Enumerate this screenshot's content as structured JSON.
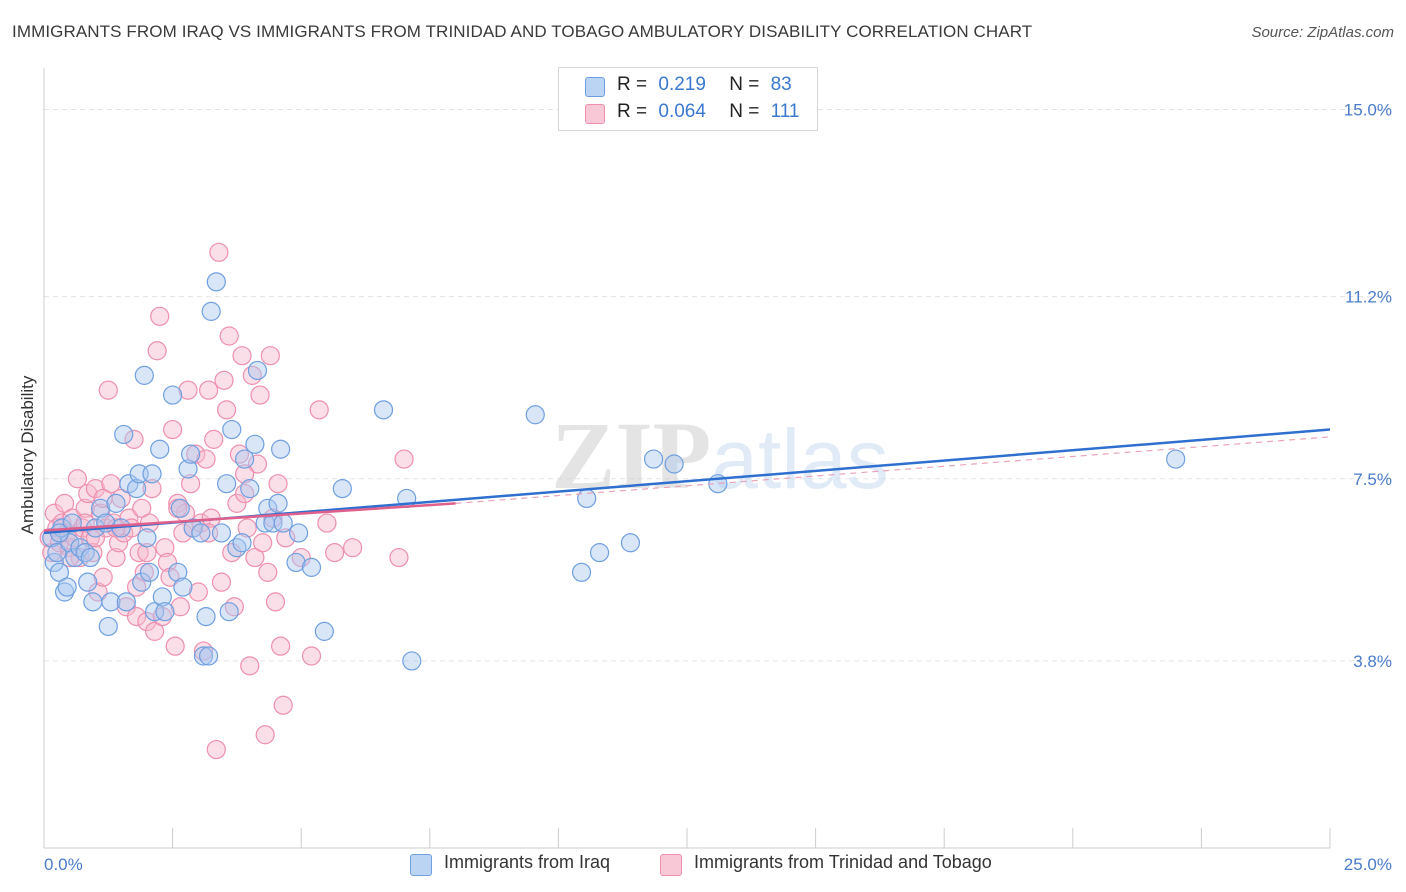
{
  "header": {
    "title": "IMMIGRANTS FROM IRAQ VS IMMIGRANTS FROM TRINIDAD AND TOBAGO AMBULATORY DISABILITY CORRELATION CHART",
    "source": "Source: ZipAtlas.com"
  },
  "legend": {
    "iraq": {
      "r_label": "R =",
      "r_value": "0.219",
      "n_label": "N =",
      "n_value": "83"
    },
    "trinidad": {
      "r_label": "R =",
      "r_value": "0.064",
      "n_label": "N =",
      "n_value": "111"
    }
  },
  "colors": {
    "iraq_fill": "#a9c8f0",
    "iraq_stroke": "#6f9fe0",
    "iraq_line": "#2f6fcf",
    "trinidad_fill": "#f7b8cb",
    "trinidad_stroke": "#ee8fae",
    "trinidad_line": "#e0608c",
    "grid": "#e3e3e3",
    "tick_label": "#4a7cc9"
  },
  "chart_data": {
    "type": "scatter",
    "title": "IMMIGRANTS FROM IRAQ VS IMMIGRANTS FROM TRINIDAD AND TOBAGO AMBULATORY DISABILITY CORRELATION CHART",
    "ylabel": "Ambulatory Disability",
    "xlabel": "",
    "xlim": [
      0,
      25
    ],
    "ylim": [
      0,
      15.6
    ],
    "x_tick_labels": [
      "0.0%",
      "25.0%"
    ],
    "y_ticks": [
      3.8,
      7.5,
      11.2,
      15.0
    ],
    "y_tick_labels": [
      "3.8%",
      "7.5%",
      "11.2%",
      "15.0%"
    ],
    "grid": true,
    "legend_placement": "top-center",
    "watermark": "ZIPatlas",
    "series": [
      {
        "name": "Immigrants from Iraq",
        "trend": {
          "x": [
            0,
            25
          ],
          "y": [
            6.4,
            8.5
          ]
        },
        "points": [
          [
            0.15,
            6.3
          ],
          [
            0.2,
            5.8
          ],
          [
            0.25,
            6.0
          ],
          [
            0.3,
            5.6
          ],
          [
            0.35,
            6.5
          ],
          [
            0.4,
            5.2
          ],
          [
            0.45,
            5.3
          ],
          [
            0.5,
            6.2
          ],
          [
            0.55,
            6.6
          ],
          [
            0.6,
            5.9
          ],
          [
            0.7,
            6.1
          ],
          [
            0.8,
            6.0
          ],
          [
            0.85,
            5.4
          ],
          [
            0.9,
            5.9
          ],
          [
            0.95,
            5.0
          ],
          [
            1.0,
            6.5
          ],
          [
            1.1,
            6.9
          ],
          [
            1.2,
            6.6
          ],
          [
            1.25,
            4.5
          ],
          [
            1.3,
            5.0
          ],
          [
            1.4,
            7.0
          ],
          [
            1.5,
            6.5
          ],
          [
            1.55,
            8.4
          ],
          [
            1.6,
            5.0
          ],
          [
            1.65,
            7.4
          ],
          [
            1.8,
            7.3
          ],
          [
            1.85,
            7.6
          ],
          [
            1.9,
            5.4
          ],
          [
            1.95,
            9.6
          ],
          [
            2.0,
            6.3
          ],
          [
            2.05,
            5.6
          ],
          [
            2.1,
            7.6
          ],
          [
            2.15,
            4.8
          ],
          [
            2.25,
            8.1
          ],
          [
            2.3,
            5.1
          ],
          [
            2.35,
            4.8
          ],
          [
            2.5,
            9.2
          ],
          [
            2.6,
            5.6
          ],
          [
            2.65,
            6.9
          ],
          [
            2.7,
            5.3
          ],
          [
            2.8,
            7.7
          ],
          [
            2.85,
            8.0
          ],
          [
            2.9,
            6.5
          ],
          [
            3.05,
            6.4
          ],
          [
            3.1,
            3.9
          ],
          [
            3.15,
            4.7
          ],
          [
            3.2,
            3.9
          ],
          [
            3.25,
            10.9
          ],
          [
            3.35,
            11.5
          ],
          [
            3.45,
            6.4
          ],
          [
            3.55,
            7.4
          ],
          [
            3.6,
            4.8
          ],
          [
            3.65,
            8.5
          ],
          [
            3.75,
            6.1
          ],
          [
            3.85,
            6.2
          ],
          [
            3.9,
            7.9
          ],
          [
            4.0,
            7.3
          ],
          [
            4.1,
            8.2
          ],
          [
            4.15,
            9.7
          ],
          [
            4.3,
            6.6
          ],
          [
            4.35,
            6.9
          ],
          [
            4.45,
            6.6
          ],
          [
            4.55,
            7.0
          ],
          [
            4.6,
            8.1
          ],
          [
            4.65,
            6.6
          ],
          [
            4.9,
            5.8
          ],
          [
            4.95,
            6.4
          ],
          [
            5.2,
            5.7
          ],
          [
            5.45,
            4.4
          ],
          [
            5.8,
            7.3
          ],
          [
            6.6,
            8.9
          ],
          [
            7.05,
            7.1
          ],
          [
            7.15,
            3.8
          ],
          [
            9.55,
            8.8
          ],
          [
            10.45,
            5.6
          ],
          [
            10.55,
            7.1
          ],
          [
            10.8,
            6.0
          ],
          [
            11.4,
            6.2
          ],
          [
            11.85,
            7.9
          ],
          [
            12.25,
            7.8
          ],
          [
            13.1,
            7.4
          ],
          [
            22.0,
            7.9
          ],
          [
            0.3,
            6.4
          ]
        ]
      },
      {
        "name": "Immigrants from Trinidad and Tobago",
        "trend": {
          "x": [
            0,
            8.0
          ],
          "y": [
            6.45,
            7.0
          ]
        },
        "trend_ext": {
          "x": [
            8.0,
            25
          ],
          "y": [
            7.0,
            8.35
          ]
        },
        "points": [
          [
            0.1,
            6.3
          ],
          [
            0.15,
            6.0
          ],
          [
            0.2,
            6.8
          ],
          [
            0.25,
            6.5
          ],
          [
            0.3,
            6.2
          ],
          [
            0.35,
            6.6
          ],
          [
            0.4,
            7.0
          ],
          [
            0.45,
            6.4
          ],
          [
            0.5,
            6.1
          ],
          [
            0.55,
            6.7
          ],
          [
            0.6,
            6.3
          ],
          [
            0.65,
            7.5
          ],
          [
            0.7,
            5.9
          ],
          [
            0.75,
            6.5
          ],
          [
            0.8,
            6.9
          ],
          [
            0.85,
            7.2
          ],
          [
            0.9,
            6.3
          ],
          [
            0.95,
            6.0
          ],
          [
            1.0,
            7.3
          ],
          [
            1.05,
            5.2
          ],
          [
            1.1,
            6.8
          ],
          [
            1.15,
            5.5
          ],
          [
            1.2,
            6.5
          ],
          [
            1.25,
            9.3
          ],
          [
            1.3,
            7.4
          ],
          [
            1.35,
            6.6
          ],
          [
            1.4,
            5.9
          ],
          [
            1.45,
            6.2
          ],
          [
            1.5,
            7.1
          ],
          [
            1.55,
            6.4
          ],
          [
            1.6,
            4.9
          ],
          [
            1.65,
            6.7
          ],
          [
            1.7,
            6.5
          ],
          [
            1.75,
            8.3
          ],
          [
            1.8,
            4.7
          ],
          [
            1.85,
            6.0
          ],
          [
            1.9,
            6.9
          ],
          [
            1.95,
            5.6
          ],
          [
            2.0,
            4.6
          ],
          [
            2.05,
            6.6
          ],
          [
            2.1,
            7.3
          ],
          [
            2.15,
            4.4
          ],
          [
            2.2,
            10.1
          ],
          [
            2.25,
            10.8
          ],
          [
            2.3,
            4.7
          ],
          [
            2.35,
            6.1
          ],
          [
            2.4,
            5.8
          ],
          [
            2.45,
            5.5
          ],
          [
            2.5,
            8.5
          ],
          [
            2.55,
            4.1
          ],
          [
            2.6,
            7.0
          ],
          [
            2.65,
            4.9
          ],
          [
            2.7,
            6.4
          ],
          [
            2.75,
            6.8
          ],
          [
            2.8,
            9.3
          ],
          [
            2.85,
            7.4
          ],
          [
            2.9,
            6.5
          ],
          [
            2.95,
            8.0
          ],
          [
            3.0,
            5.2
          ],
          [
            3.05,
            6.6
          ],
          [
            3.1,
            4.0
          ],
          [
            3.15,
            7.9
          ],
          [
            3.2,
            9.3
          ],
          [
            3.25,
            6.7
          ],
          [
            3.3,
            8.3
          ],
          [
            3.35,
            2.0
          ],
          [
            3.4,
            12.1
          ],
          [
            3.45,
            5.4
          ],
          [
            3.5,
            9.5
          ],
          [
            3.55,
            8.9
          ],
          [
            3.6,
            10.4
          ],
          [
            3.65,
            6.0
          ],
          [
            3.7,
            4.9
          ],
          [
            3.75,
            7.0
          ],
          [
            3.8,
            8.0
          ],
          [
            3.85,
            10.0
          ],
          [
            3.9,
            7.2
          ],
          [
            3.95,
            6.5
          ],
          [
            4.0,
            3.7
          ],
          [
            4.05,
            9.6
          ],
          [
            4.1,
            5.9
          ],
          [
            4.15,
            7.8
          ],
          [
            4.2,
            9.2
          ],
          [
            4.25,
            6.2
          ],
          [
            4.3,
            2.3
          ],
          [
            4.35,
            5.6
          ],
          [
            4.4,
            10.0
          ],
          [
            4.45,
            6.7
          ],
          [
            4.5,
            5.0
          ],
          [
            4.55,
            7.4
          ],
          [
            4.6,
            4.1
          ],
          [
            4.65,
            2.9
          ],
          [
            4.7,
            6.3
          ],
          [
            5.0,
            5.9
          ],
          [
            5.2,
            3.9
          ],
          [
            5.35,
            8.9
          ],
          [
            5.5,
            6.6
          ],
          [
            5.65,
            6.0
          ],
          [
            6.0,
            6.1
          ],
          [
            7.0,
            7.9
          ],
          [
            6.9,
            5.9
          ],
          [
            2.0,
            6.0
          ],
          [
            1.0,
            6.3
          ],
          [
            0.5,
            5.9
          ],
          [
            0.8,
            6.6
          ],
          [
            1.4,
            6.5
          ],
          [
            2.6,
            6.9
          ],
          [
            3.2,
            6.4
          ],
          [
            3.9,
            7.6
          ],
          [
            1.8,
            5.3
          ],
          [
            1.15,
            7.1
          ]
        ]
      }
    ]
  },
  "bottom_legend": {
    "iraq_label": "Immigrants from Iraq",
    "trinidad_label": "Immigrants from Trinidad and Tobago"
  }
}
